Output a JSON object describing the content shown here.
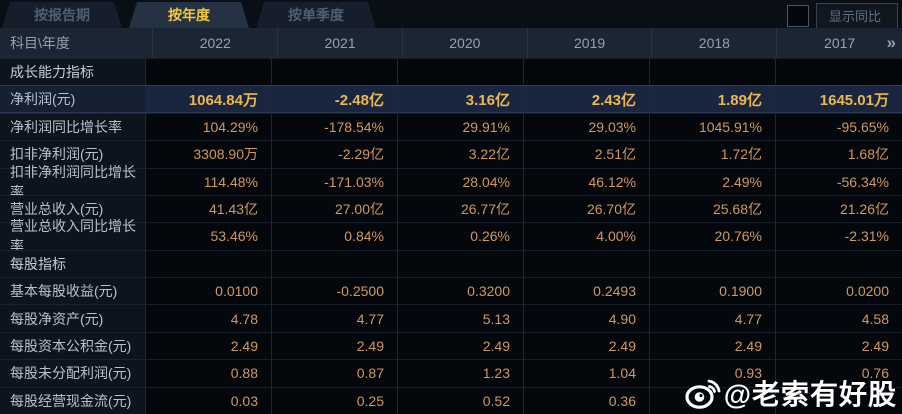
{
  "tabs": [
    {
      "label": "按报告期",
      "active": false
    },
    {
      "label": "按年度",
      "active": true
    },
    {
      "label": "按单季度",
      "active": false
    }
  ],
  "show_yoy": {
    "label": "显示同比",
    "checked": false
  },
  "table": {
    "corner_label": "科目\\年度",
    "years": [
      "2022",
      "2021",
      "2020",
      "2019",
      "2018",
      "2017"
    ],
    "more_icon": "»",
    "rows": [
      {
        "type": "section",
        "label": "成长能力指标",
        "highlight": false,
        "values": [
          "",
          "",
          "",
          "",
          "",
          ""
        ]
      },
      {
        "type": "data",
        "label": "净利润(元)",
        "highlight": true,
        "values": [
          "1064.84万",
          "-2.48亿",
          "3.16亿",
          "2.43亿",
          "1.89亿",
          "1645.01万"
        ]
      },
      {
        "type": "data",
        "label": "净利润同比增长率",
        "highlight": false,
        "values": [
          "104.29%",
          "-178.54%",
          "29.91%",
          "29.03%",
          "1045.91%",
          "-95.65%"
        ]
      },
      {
        "type": "data",
        "label": "扣非净利润(元)",
        "highlight": false,
        "values": [
          "3308.90万",
          "-2.29亿",
          "3.22亿",
          "2.51亿",
          "1.72亿",
          "1.68亿"
        ]
      },
      {
        "type": "data",
        "label": "扣非净利润同比增长率",
        "highlight": false,
        "values": [
          "114.48%",
          "-171.03%",
          "28.04%",
          "46.12%",
          "2.49%",
          "-56.34%"
        ]
      },
      {
        "type": "data",
        "label": "营业总收入(元)",
        "highlight": false,
        "values": [
          "41.43亿",
          "27.00亿",
          "26.77亿",
          "26.70亿",
          "25.68亿",
          "21.26亿"
        ]
      },
      {
        "type": "data",
        "label": "营业总收入同比增长率",
        "highlight": false,
        "values": [
          "53.46%",
          "0.84%",
          "0.26%",
          "4.00%",
          "20.76%",
          "-2.31%"
        ]
      },
      {
        "type": "section",
        "label": "每股指标",
        "highlight": false,
        "values": [
          "",
          "",
          "",
          "",
          "",
          ""
        ]
      },
      {
        "type": "data",
        "label": "基本每股收益(元)",
        "highlight": false,
        "values": [
          "0.0100",
          "-0.2500",
          "0.3200",
          "0.2493",
          "0.1900",
          "0.0200"
        ]
      },
      {
        "type": "data",
        "label": "每股净资产(元)",
        "highlight": false,
        "values": [
          "4.78",
          "4.77",
          "5.13",
          "4.90",
          "4.77",
          "4.58"
        ]
      },
      {
        "type": "data",
        "label": "每股资本公积金(元)",
        "highlight": false,
        "values": [
          "2.49",
          "2.49",
          "2.49",
          "2.49",
          "2.49",
          "2.49"
        ]
      },
      {
        "type": "data",
        "label": "每股未分配利润(元)",
        "highlight": false,
        "values": [
          "0.88",
          "0.87",
          "1.23",
          "1.04",
          "0.93",
          "0.76"
        ]
      },
      {
        "type": "data",
        "label": "每股经营现金流(元)",
        "highlight": false,
        "values": [
          "0.03",
          "0.25",
          "0.52",
          "0.36",
          "",
          ""
        ]
      }
    ]
  },
  "watermark": {
    "icon": "weibo-icon",
    "text": "@老索有好股"
  },
  "colors": {
    "accent_gold": "#f2c83e",
    "value_orange": "#d2985e",
    "highlight_value": "#ecb84e",
    "header_bg": "#1b2533",
    "highlight_row_bg": "#1a2640"
  }
}
